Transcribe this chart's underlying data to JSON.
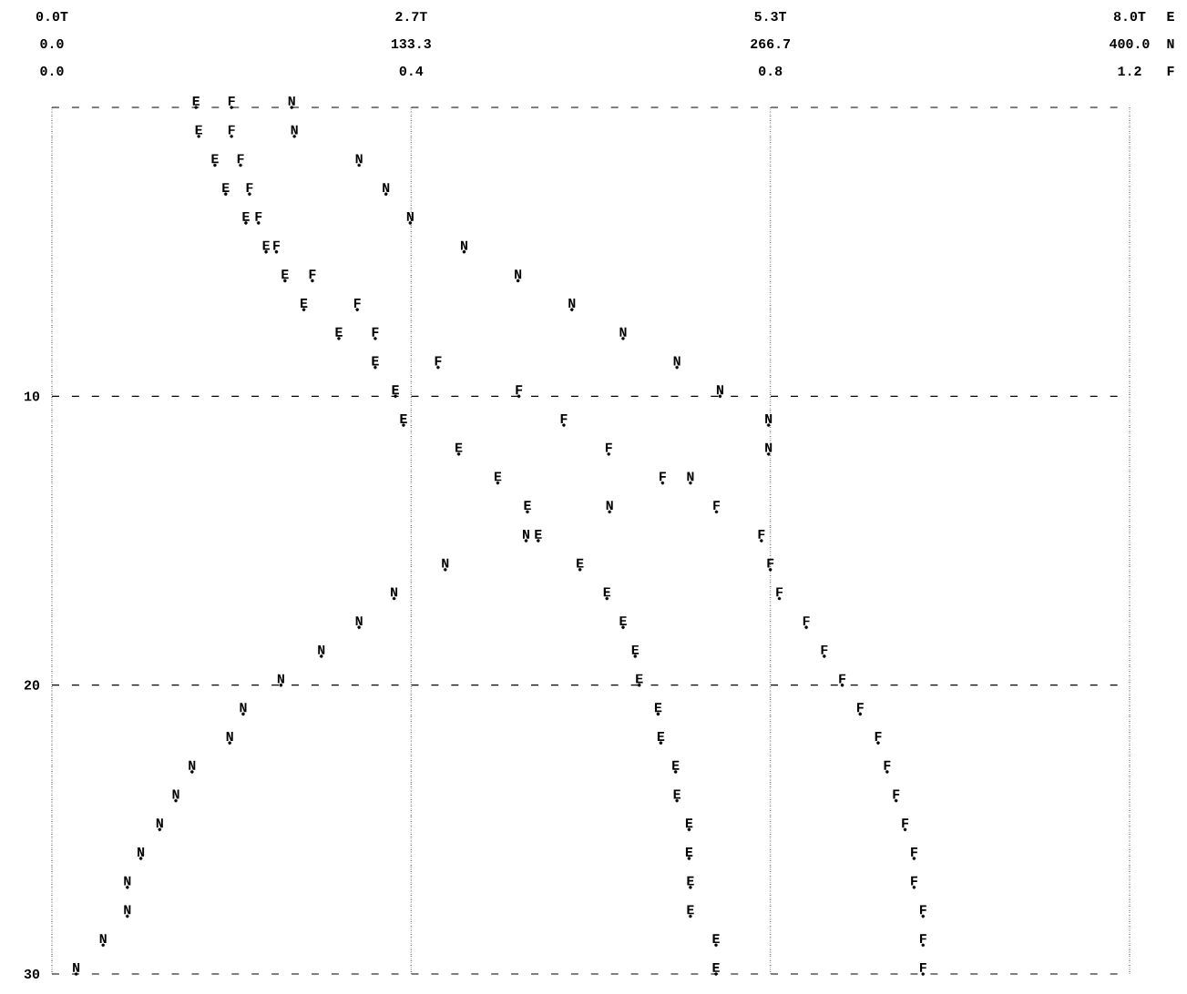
{
  "chart_data": [
    {
      "type": "scatter",
      "xlabel": "E",
      "x2label": "N",
      "xlim": [
        0,
        8
      ],
      "xticks": [
        {
          "value": 0,
          "label": "0.0T"
        },
        {
          "value": 2.667,
          "label": "2.7T"
        },
        {
          "value": 5.333,
          "label": "5.3T"
        },
        {
          "value": 8,
          "label": "8.0T"
        }
      ],
      "x2lim": [
        0,
        400
      ],
      "x2ticks": [
        {
          "value": 0,
          "label": "0.0"
        },
        {
          "value": 133.33,
          "label": "133.3"
        },
        {
          "value": 266.67,
          "label": "266.7"
        },
        {
          "value": 400,
          "label": "400.0"
        }
      ],
      "ylim": [
        30,
        0
      ],
      "yticks": [
        {
          "value": 0,
          "label": null
        },
        10,
        20,
        30
      ],
      "grid": true,
      "marker": "circle",
      "series": [
        {
          "name": "E",
          "color": "#000000",
          "x": [
            1.07,
            1.09,
            1.21,
            1.29,
            1.44,
            1.59,
            1.73,
            1.87,
            2.13,
            2.4,
            2.55,
            2.61,
            3.02,
            3.31,
            3.53,
            3.61,
            3.92,
            4.12,
            4.24,
            4.33,
            4.36,
            4.5,
            4.52,
            4.63,
            4.64,
            4.73,
            4.73,
            4.74,
            4.74,
            4.93,
            4.93
          ],
          "values": [
            0,
            1,
            2,
            3,
            4,
            5,
            6,
            7,
            8,
            9,
            10,
            11,
            12,
            13,
            14,
            15,
            16,
            17,
            18,
            19,
            20,
            21,
            22,
            23,
            24,
            25,
            26,
            27,
            28,
            29,
            30
          ]
        },
        {
          "name": "N",
          "color": "#000000",
          "axis": "x2",
          "x": [
            89,
            90,
            114,
            124,
            133,
            153,
            173,
            193,
            212,
            232,
            248,
            266,
            266,
            237,
            207,
            176,
            146,
            127,
            114,
            100,
            85,
            71,
            66,
            52,
            46,
            40,
            33,
            28,
            28,
            19,
            9
          ],
          "values": [
            0,
            1,
            2,
            3,
            4,
            5,
            6,
            7,
            8,
            9,
            10,
            11,
            12,
            13,
            14,
            15,
            16,
            17,
            18,
            19,
            20,
            21,
            22,
            23,
            24,
            25,
            26,
            27,
            28,
            29,
            30
          ]
        }
      ]
    },
    {
      "type": "scatter",
      "xlabel": "F",
      "xlim": [
        0,
        1.2
      ],
      "xticks": [
        {
          "value": 0,
          "label": "0.0"
        },
        0.4,
        0.8,
        1.2
      ],
      "ylim": [
        30,
        0
      ],
      "tick_labels": "x",
      "marker": "circle",
      "series": [
        {
          "name": "F",
          "color": "#000000",
          "x": [
            0.2,
            0.2,
            0.21,
            0.22,
            0.23,
            0.25,
            0.29,
            0.34,
            0.36,
            0.43,
            0.52,
            0.57,
            0.62,
            0.68,
            0.74,
            0.79,
            0.8,
            0.81,
            0.84,
            0.86,
            0.88,
            0.9,
            0.92,
            0.93,
            0.94,
            0.95,
            0.96,
            0.96,
            0.97,
            0.97,
            0.97
          ],
          "values": [
            0,
            1,
            2,
            3,
            4,
            5,
            6,
            7,
            8,
            9,
            10,
            11,
            12,
            13,
            14,
            15,
            16,
            17,
            18,
            19,
            20,
            21,
            22,
            23,
            24,
            25,
            26,
            27,
            28,
            29,
            30
          ]
        }
      ]
    }
  ]
}
